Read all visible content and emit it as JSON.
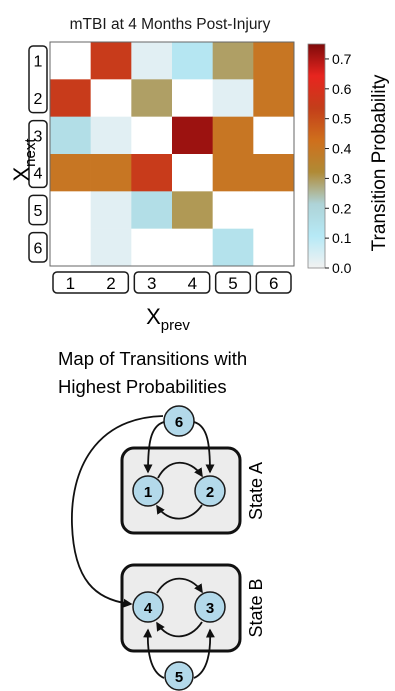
{
  "chart_data": {
    "type": "heatmap",
    "title": "mTBI at 4 Months Post-Injury",
    "xlabel": "X",
    "xlabel_sub": "prev",
    "ylabel": "X",
    "ylabel_sub": "next",
    "x_categories": [
      "1",
      "2",
      "3",
      "4",
      "5",
      "6"
    ],
    "y_categories": [
      "1",
      "2",
      "3",
      "4",
      "5",
      "6"
    ],
    "x_tick_groups": [
      [
        "1",
        "2"
      ],
      [
        "3",
        "4"
      ],
      [
        "5"
      ],
      [
        "6"
      ]
    ],
    "y_tick_groups": [
      [
        "1",
        "2"
      ],
      [
        "3",
        "4"
      ],
      [
        "5"
      ],
      [
        "6"
      ]
    ],
    "values": [
      [
        0.0,
        0.55,
        0.03,
        0.12,
        0.29,
        0.4
      ],
      [
        0.55,
        0.0,
        0.29,
        0.0,
        0.03,
        0.4
      ],
      [
        0.16,
        0.03,
        0.0,
        0.72,
        0.4,
        0.0
      ],
      [
        0.4,
        0.4,
        0.55,
        0.0,
        0.4,
        0.4
      ],
      [
        0.0,
        0.03,
        0.16,
        0.3,
        0.0,
        0.0
      ],
      [
        0.0,
        0.03,
        0.0,
        0.0,
        0.14,
        0.0
      ]
    ],
    "colorbar": {
      "label": "Transition Probability",
      "min": 0.0,
      "max": 0.75,
      "ticks": [
        "0.0",
        "0.1",
        "0.2",
        "0.3",
        "0.4",
        "0.5",
        "0.6",
        "0.7"
      ],
      "colors": [
        "#f2f2f2",
        "#b6e9f6",
        "#aed3d7",
        "#b08a35",
        "#cf6f1c",
        "#c33e1a",
        "#e8251f",
        "#7e0a0a"
      ]
    }
  },
  "diagram": {
    "title_lines": [
      "Map of Transitions with",
      "Highest Probabilities"
    ],
    "node_labels": [
      "1",
      "2",
      "3",
      "4",
      "5",
      "6"
    ],
    "state_a_label": "State A",
    "state_b_label": "State B",
    "node_color": "#b3d9ea",
    "box_color": "#ececec"
  }
}
